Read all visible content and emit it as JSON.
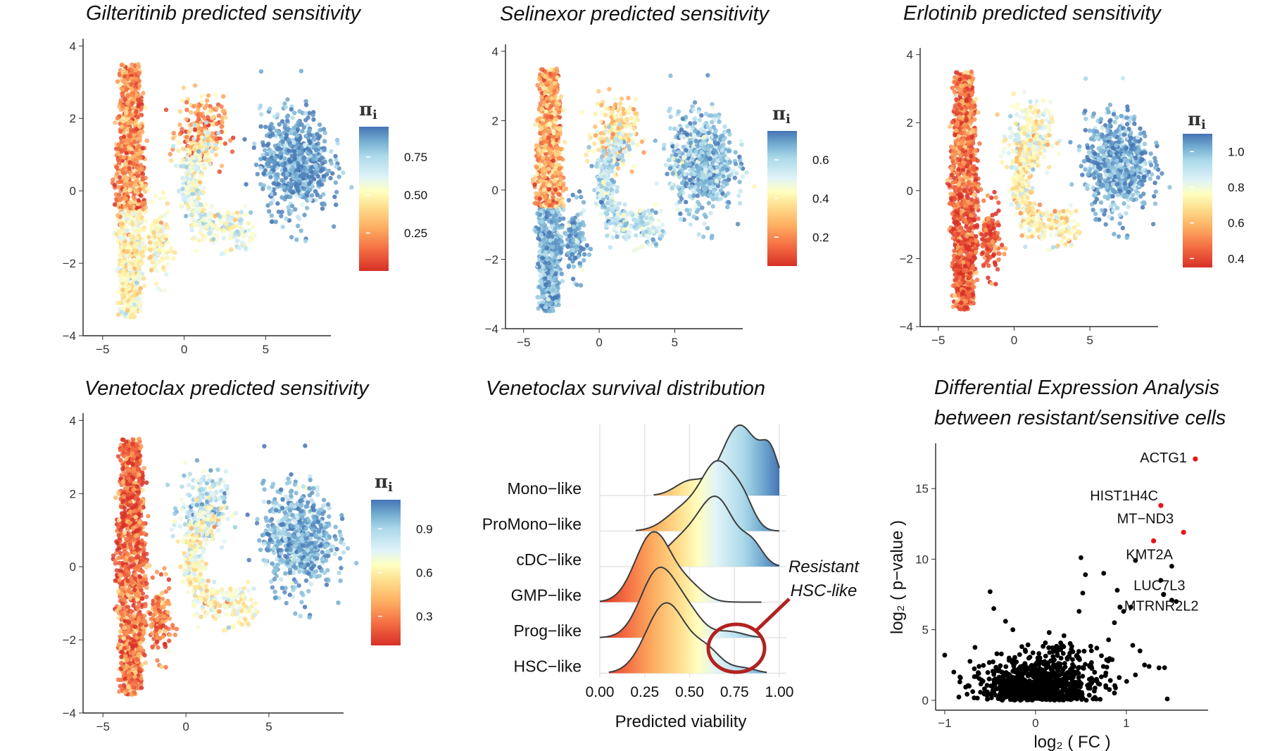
{
  "chart_data": [
    {
      "type": "scatter",
      "title": "Gilteritinib predicted sensitivity",
      "xlabel": "",
      "ylabel": "",
      "xlim": [
        -6.2,
        9
      ],
      "ylim": [
        -4,
        4.2
      ],
      "xticks": [
        "−5",
        "0",
        "5"
      ],
      "yticks": [
        "4",
        "2",
        "0",
        "−2",
        "−4"
      ],
      "legend": {
        "title": "π",
        "subscript": "i",
        "position": "right",
        "range": [
          0.0,
          0.95
        ],
        "ticks": [
          "0.75",
          "0.50",
          "0.25"
        ]
      },
      "pattern": {
        "trunk": 0.18,
        "lower_trunk": 0.45,
        "upper_bridge": 0.2,
        "loop": 0.55,
        "right_cluster": 0.85
      }
    },
    {
      "type": "scatter",
      "title": "Selinexor predicted sensitivity",
      "xlabel": "",
      "ylabel": "",
      "xlim": [
        -6.2,
        9.5
      ],
      "ylim": [
        -4,
        4.2
      ],
      "xticks": [
        "−5",
        "0",
        "5"
      ],
      "yticks": [
        "4",
        "2",
        "0",
        "−2",
        "−4"
      ],
      "legend": {
        "title": "π",
        "subscript": "i",
        "position": "right",
        "range": [
          0.05,
          0.75
        ],
        "ticks": [
          "0.6",
          "0.4",
          "0.2"
        ]
      },
      "pattern": {
        "trunk": 0.22,
        "lower_trunk": 0.65,
        "upper_bridge": 0.3,
        "loop": 0.55,
        "right_cluster": 0.62
      }
    },
    {
      "type": "scatter",
      "title": "Erlotinib predicted sensitivity",
      "xlabel": "",
      "ylabel": "",
      "xlim": [
        -6.2,
        9.5
      ],
      "ylim": [
        -4,
        4.2
      ],
      "xticks": [
        "−5",
        "0",
        "5"
      ],
      "yticks": [
        "4",
        "2",
        "0",
        "−2",
        "−4"
      ],
      "legend": {
        "title": "π",
        "subscript": "i",
        "position": "right",
        "range": [
          0.35,
          1.1
        ],
        "ticks": [
          "1.0",
          "0.8",
          "0.6",
          "0.4"
        ]
      },
      "pattern": {
        "trunk": 0.45,
        "lower_trunk": 0.4,
        "upper_bridge": 0.75,
        "loop": 0.7,
        "right_cluster": 1.0
      }
    },
    {
      "type": "scatter",
      "title": "Venetoclax predicted sensitivity",
      "xlabel": "",
      "ylabel": "",
      "xlim": [
        -6.2,
        9.5
      ],
      "ylim": [
        -4,
        4.2
      ],
      "xticks": [
        "−5",
        "0",
        "5"
      ],
      "yticks": [
        "4",
        "2",
        "0",
        "−2",
        "−4"
      ],
      "legend": {
        "title": "π",
        "subscript": "i",
        "position": "right",
        "range": [
          0.1,
          1.1
        ],
        "ticks": [
          "0.9",
          "0.6",
          "0.3"
        ]
      },
      "pattern": {
        "trunk": 0.2,
        "lower_trunk": 0.25,
        "upper_bridge": 0.8,
        "loop": 0.6,
        "right_cluster": 0.95
      }
    },
    {
      "type": "area",
      "subtype": "ridgeline",
      "title": "Venetoclax survival distribution",
      "xlabel": "Predicted viability",
      "ylabel": "",
      "xlim": [
        0,
        1
      ],
      "xticks": [
        "0.00",
        "0.25",
        "0.50",
        "0.75",
        "1.00"
      ],
      "categories": [
        "Mono−like",
        "ProMono−like",
        "cDC−like",
        "GMP−like",
        "Prog−like",
        "HSC−like"
      ],
      "series": [
        {
          "name": "Mono−like",
          "peaks": [
            [
              0.5,
              0.2,
              0.08
            ],
            [
              0.78,
              1.0,
              0.1
            ],
            [
              0.95,
              0.5,
              0.05
            ]
          ],
          "min": 0.3,
          "max": 1.0
        },
        {
          "name": "ProMono−like",
          "peaks": [
            [
              0.47,
              0.28,
              0.1
            ],
            [
              0.66,
              0.85,
              0.09
            ],
            [
              0.8,
              0.3,
              0.06
            ]
          ],
          "min": 0.2,
          "max": 1.0
        },
        {
          "name": "cDC−like",
          "peaks": [
            [
              0.45,
              0.3,
              0.1
            ],
            [
              0.65,
              0.85,
              0.1
            ],
            [
              0.85,
              0.25,
              0.06
            ]
          ],
          "min": 0.2,
          "max": 1.0
        },
        {
          "name": "GMP−like",
          "peaks": [
            [
              0.3,
              1.0,
              0.1
            ],
            [
              0.5,
              0.2,
              0.08
            ]
          ],
          "min": 0.0,
          "max": 0.9
        },
        {
          "name": "Prog−like",
          "peaks": [
            [
              0.33,
              0.9,
              0.1
            ],
            [
              0.5,
              0.25,
              0.08
            ],
            [
              0.72,
              0.08,
              0.08
            ]
          ],
          "min": 0.0,
          "max": 0.9
        },
        {
          "name": "HSC−like",
          "peaks": [
            [
              0.37,
              0.85,
              0.11
            ],
            [
              0.6,
              0.25,
              0.08
            ],
            [
              0.8,
              0.06,
              0.07
            ]
          ],
          "min": 0.05,
          "max": 0.93
        }
      ],
      "annotation": {
        "line1": "Resistant",
        "line2": "HSC-like"
      }
    },
    {
      "type": "scatter",
      "title": "Differential Expression Analysis",
      "subtitle": "between resistant/sensitive cells",
      "xlabel": "log₂ ( FC )",
      "ylabel": "log₂ ( p−value )",
      "xlim": [
        -1.1,
        1.9
      ],
      "ylim": [
        -0.7,
        18.2
      ],
      "xticks": [
        "−1",
        "0",
        "1"
      ],
      "yticks": [
        "0",
        "5",
        "10",
        "15"
      ],
      "highlight_color": "#e8161b",
      "labeled_points": [
        {
          "gene": "ACTG1",
          "x": 1.76,
          "y": 17.1,
          "highlight": true
        },
        {
          "gene": "HIST1H4C",
          "x": 1.38,
          "y": 13.8,
          "highlight": true
        },
        {
          "gene": "MT−ND3",
          "x": 1.63,
          "y": 11.9,
          "highlight": true
        },
        {
          "gene": "KMT2A",
          "x": 1.3,
          "y": 11.3,
          "highlight": true
        },
        {
          "gene": "LUC7L3",
          "x": 1.41,
          "y": 7.5,
          "highlight": false
        },
        {
          "gene": "MTRNR2L2",
          "x": 0.93,
          "y": 6.6,
          "highlight": false
        }
      ],
      "outliers": [
        [
          -1.0,
          3.2
        ],
        [
          -0.9,
          2.0
        ],
        [
          -0.5,
          7.7
        ],
        [
          -0.46,
          6.5
        ],
        [
          -0.33,
          5.6
        ],
        [
          -0.25,
          5.0
        ],
        [
          0.15,
          4.8
        ],
        [
          0.5,
          10.1
        ],
        [
          0.55,
          8.9
        ],
        [
          0.52,
          7.6
        ],
        [
          0.48,
          6.3
        ],
        [
          0.75,
          9.0
        ],
        [
          0.9,
          7.8
        ],
        [
          0.97,
          6.3
        ],
        [
          1.05,
          6.6
        ],
        [
          1.1,
          9.9
        ],
        [
          1.38,
          8.5
        ],
        [
          1.5,
          9.5
        ],
        [
          1.5,
          7.1
        ],
        [
          1.55,
          7.0
        ],
        [
          1.45,
          0.1
        ],
        [
          1.2,
          2.5
        ],
        [
          1.15,
          3.5
        ],
        [
          1.1,
          1.8
        ],
        [
          1.25,
          2.4
        ],
        [
          1.36,
          2.3
        ]
      ]
    }
  ],
  "colors": {
    "scale": [
      "#d73027",
      "#f46d43",
      "#fdae61",
      "#fee090",
      "#ffffbf",
      "#e0f3f8",
      "#abd9e9",
      "#74add1",
      "#4575b4"
    ],
    "points_default": "#000000",
    "annotation_ring": "#b2221f"
  }
}
